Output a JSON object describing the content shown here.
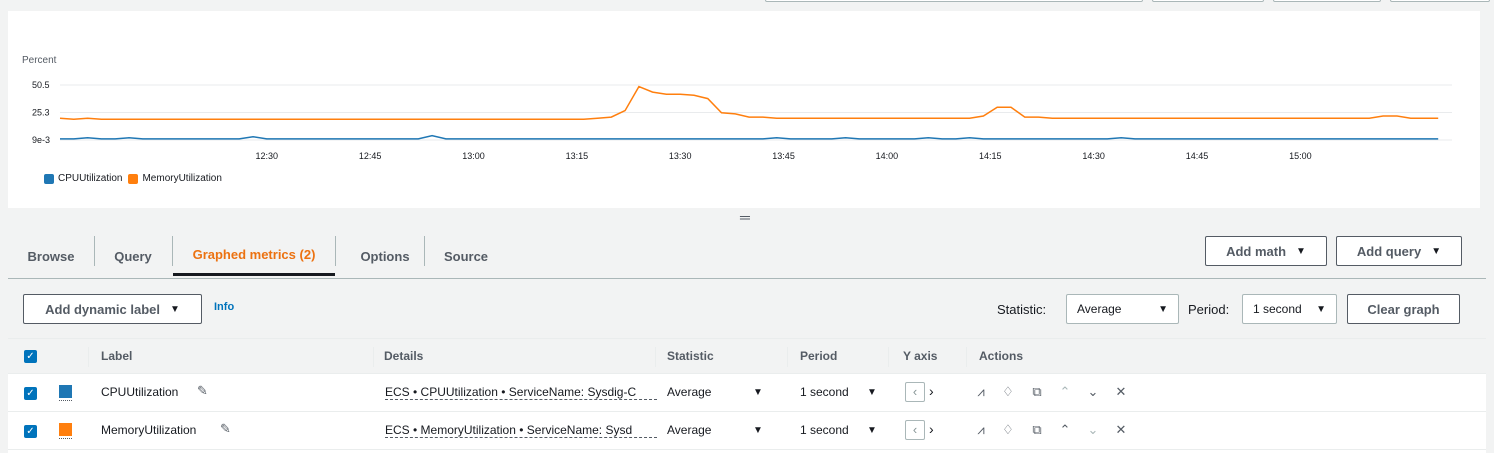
{
  "chart_data": {
    "type": "line",
    "ylabel": "Percent",
    "y_ticks": [
      "50.5",
      "25.3",
      "9e-3"
    ],
    "y_tick_values": [
      50.5,
      25.3,
      0.009
    ],
    "ylim": [
      0.009,
      50.5
    ],
    "x_ticks": [
      "12:30",
      "12:45",
      "13:00",
      "13:15",
      "13:30",
      "13:45",
      "14:00",
      "14:15",
      "14:30",
      "14:45",
      "15:00"
    ],
    "x_tick_minutes": [
      750,
      765,
      780,
      795,
      810,
      825,
      840,
      855,
      870,
      885,
      900
    ],
    "x_range_minutes": [
      720,
      922
    ],
    "grid": true,
    "legend_position": "bottom-left",
    "series": [
      {
        "name": "CPUUtilization",
        "color": "#1f77b4",
        "points": [
          [
            720,
            1
          ],
          [
            722,
            1
          ],
          [
            724,
            2
          ],
          [
            726,
            1
          ],
          [
            728,
            1
          ],
          [
            730,
            2
          ],
          [
            732,
            1
          ],
          [
            734,
            1
          ],
          [
            736,
            1
          ],
          [
            738,
            1
          ],
          [
            740,
            1
          ],
          [
            742,
            1
          ],
          [
            744,
            1
          ],
          [
            746,
            1
          ],
          [
            748,
            3
          ],
          [
            750,
            1
          ],
          [
            752,
            1
          ],
          [
            754,
            1
          ],
          [
            756,
            1
          ],
          [
            758,
            1
          ],
          [
            760,
            1
          ],
          [
            762,
            1
          ],
          [
            764,
            1
          ],
          [
            766,
            1
          ],
          [
            768,
            1
          ],
          [
            770,
            1
          ],
          [
            772,
            1
          ],
          [
            774,
            4
          ],
          [
            776,
            1
          ],
          [
            778,
            1
          ],
          [
            780,
            1
          ],
          [
            782,
            1
          ],
          [
            784,
            1
          ],
          [
            786,
            1
          ],
          [
            788,
            1
          ],
          [
            790,
            1
          ],
          [
            792,
            1
          ],
          [
            794,
            1
          ],
          [
            796,
            1
          ],
          [
            798,
            1
          ],
          [
            800,
            1
          ],
          [
            802,
            1
          ],
          [
            804,
            1
          ],
          [
            806,
            1
          ],
          [
            808,
            1
          ],
          [
            810,
            1
          ],
          [
            812,
            1
          ],
          [
            814,
            1
          ],
          [
            816,
            1
          ],
          [
            818,
            1
          ],
          [
            820,
            1
          ],
          [
            822,
            1
          ],
          [
            824,
            2
          ],
          [
            826,
            1
          ],
          [
            828,
            1
          ],
          [
            830,
            1
          ],
          [
            832,
            1
          ],
          [
            834,
            2
          ],
          [
            836,
            1
          ],
          [
            838,
            1
          ],
          [
            840,
            1
          ],
          [
            842,
            1
          ],
          [
            844,
            1
          ],
          [
            846,
            2
          ],
          [
            848,
            1
          ],
          [
            850,
            1
          ],
          [
            852,
            2
          ],
          [
            854,
            1
          ],
          [
            856,
            1
          ],
          [
            858,
            1
          ],
          [
            860,
            1
          ],
          [
            862,
            1
          ],
          [
            864,
            1
          ],
          [
            866,
            1
          ],
          [
            868,
            1
          ],
          [
            870,
            1
          ],
          [
            872,
            1
          ],
          [
            874,
            2
          ],
          [
            876,
            1
          ],
          [
            878,
            1
          ],
          [
            880,
            1
          ],
          [
            882,
            1
          ],
          [
            884,
            1
          ],
          [
            886,
            1
          ],
          [
            888,
            1
          ],
          [
            890,
            1
          ],
          [
            892,
            1
          ],
          [
            894,
            1
          ],
          [
            896,
            1
          ],
          [
            898,
            1
          ],
          [
            900,
            1
          ],
          [
            902,
            1
          ],
          [
            904,
            1
          ],
          [
            906,
            1
          ],
          [
            908,
            1
          ],
          [
            910,
            1
          ],
          [
            912,
            1
          ],
          [
            914,
            1
          ],
          [
            916,
            1
          ],
          [
            918,
            1
          ],
          [
            920,
            1
          ]
        ]
      },
      {
        "name": "MemoryUtilization",
        "color": "#ff7f0e",
        "points": [
          [
            720,
            20
          ],
          [
            722,
            19
          ],
          [
            724,
            20
          ],
          [
            726,
            19
          ],
          [
            728,
            19
          ],
          [
            730,
            19
          ],
          [
            732,
            19
          ],
          [
            734,
            19
          ],
          [
            736,
            19
          ],
          [
            738,
            19
          ],
          [
            740,
            19
          ],
          [
            742,
            19
          ],
          [
            744,
            19
          ],
          [
            746,
            19
          ],
          [
            748,
            19
          ],
          [
            750,
            19
          ],
          [
            752,
            19
          ],
          [
            754,
            19
          ],
          [
            756,
            19
          ],
          [
            758,
            19
          ],
          [
            760,
            19
          ],
          [
            762,
            19
          ],
          [
            764,
            19
          ],
          [
            766,
            19
          ],
          [
            768,
            19
          ],
          [
            770,
            19
          ],
          [
            772,
            19
          ],
          [
            774,
            19
          ],
          [
            776,
            19
          ],
          [
            778,
            19
          ],
          [
            780,
            19
          ],
          [
            782,
            19
          ],
          [
            784,
            19
          ],
          [
            786,
            19
          ],
          [
            788,
            19
          ],
          [
            790,
            19
          ],
          [
            792,
            19
          ],
          [
            794,
            19
          ],
          [
            796,
            19
          ],
          [
            798,
            20
          ],
          [
            800,
            21
          ],
          [
            802,
            27
          ],
          [
            804,
            49
          ],
          [
            806,
            44
          ],
          [
            808,
            42
          ],
          [
            810,
            42
          ],
          [
            812,
            41
          ],
          [
            814,
            38
          ],
          [
            816,
            25
          ],
          [
            818,
            24
          ],
          [
            820,
            21
          ],
          [
            822,
            21
          ],
          [
            824,
            20
          ],
          [
            826,
            20
          ],
          [
            828,
            20
          ],
          [
            830,
            20
          ],
          [
            832,
            20
          ],
          [
            834,
            20
          ],
          [
            836,
            20
          ],
          [
            838,
            20
          ],
          [
            840,
            20
          ],
          [
            842,
            20
          ],
          [
            844,
            20
          ],
          [
            846,
            20
          ],
          [
            848,
            20
          ],
          [
            850,
            20
          ],
          [
            852,
            20
          ],
          [
            854,
            22
          ],
          [
            856,
            30
          ],
          [
            858,
            30
          ],
          [
            860,
            21
          ],
          [
            862,
            21
          ],
          [
            864,
            20
          ],
          [
            866,
            20
          ],
          [
            868,
            20
          ],
          [
            870,
            20
          ],
          [
            872,
            20
          ],
          [
            874,
            20
          ],
          [
            876,
            20
          ],
          [
            878,
            20
          ],
          [
            880,
            20
          ],
          [
            882,
            20
          ],
          [
            884,
            20
          ],
          [
            886,
            20
          ],
          [
            888,
            20
          ],
          [
            890,
            20
          ],
          [
            892,
            20
          ],
          [
            894,
            20
          ],
          [
            896,
            20
          ],
          [
            898,
            20
          ],
          [
            900,
            20
          ],
          [
            902,
            20
          ],
          [
            904,
            20
          ],
          [
            906,
            20
          ],
          [
            908,
            20
          ],
          [
            910,
            20
          ],
          [
            912,
            22
          ],
          [
            914,
            22
          ],
          [
            916,
            20
          ],
          [
            918,
            20
          ],
          [
            920,
            20
          ]
        ]
      }
    ]
  },
  "legend": [
    {
      "label": "CPUUtilization",
      "color": "#1f77b4"
    },
    {
      "label": "MemoryUtilization",
      "color": "#ff7f0e"
    }
  ],
  "tabs": [
    {
      "label": "Browse"
    },
    {
      "label": "Query"
    },
    {
      "label": "Graphed metrics (2)"
    },
    {
      "label": "Options"
    },
    {
      "label": "Source"
    }
  ],
  "toolbar": {
    "add_math": "Add math",
    "add_query": "Add query",
    "add_dynamic_label": "Add dynamic label",
    "info": "Info",
    "statistic_label": "Statistic:",
    "statistic_value": "Average",
    "period_label": "Period:",
    "period_value": "1 second",
    "clear_graph": "Clear graph"
  },
  "table": {
    "headers": [
      "Label",
      "Details",
      "Statistic",
      "Period",
      "Y axis",
      "Actions"
    ],
    "rows": [
      {
        "label": "CPUUtilization",
        "color": "#1f77b4",
        "details": "ECS • CPUUtilization • ServiceName: Sysdig-C",
        "statistic": "Average",
        "period": "1 second"
      },
      {
        "label": "MemoryUtilization",
        "color": "#ff7f0e",
        "details": "ECS • MemoryUtilization • ServiceName: Sysd",
        "statistic": "Average",
        "period": "1 second"
      }
    ]
  },
  "accent_color": "#ec7211",
  "link_color": "#0073bb"
}
